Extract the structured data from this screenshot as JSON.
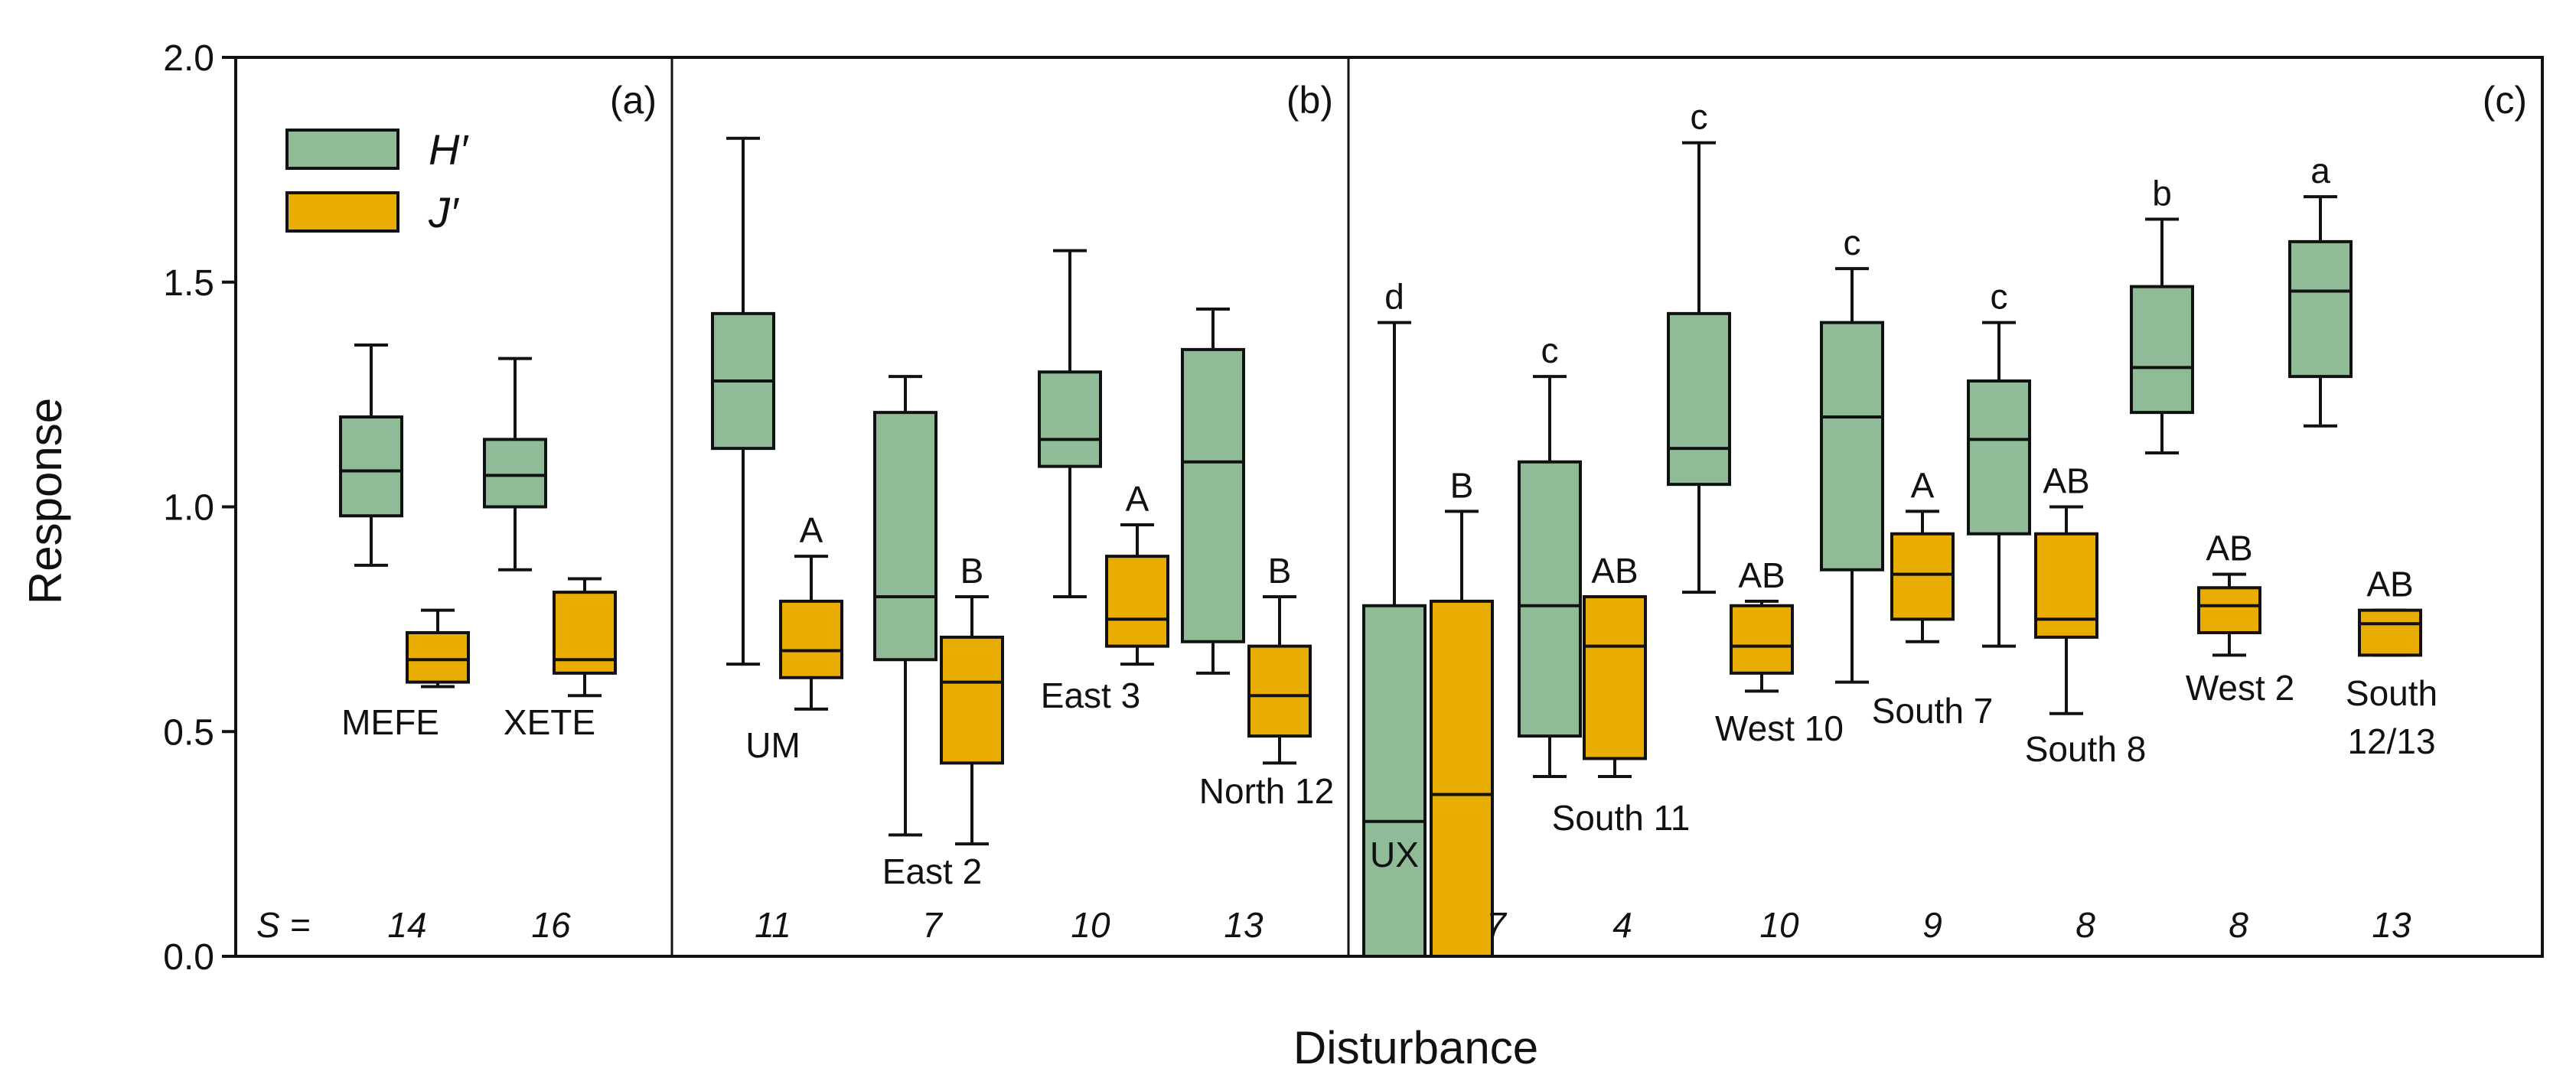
{
  "chart_data": {
    "type": "box",
    "ylabel": "Response",
    "xlabel": "Disturbance",
    "ylim": [
      0,
      2
    ],
    "yticks": [
      "0.0",
      "0.5",
      "1.0",
      "1.5",
      "2.0"
    ],
    "panels": [
      "(a)",
      "(b)",
      "(c)"
    ],
    "s_prefix": "S =",
    "colors": {
      "H": "#8fbc96",
      "J": "#e9ac00",
      "stroke": "#111111"
    },
    "legend": [
      {
        "key": "H",
        "label": "H′",
        "color": "#8fbc96"
      },
      {
        "key": "J",
        "label": "J′",
        "color": "#e9ac00"
      }
    ],
    "groups": [
      {
        "name": "MEFE",
        "panel": "(a)",
        "s": "14",
        "H": {
          "min": 0.87,
          "q1": 0.98,
          "median": 1.08,
          "q3": 1.2,
          "max": 1.36,
          "letter": ""
        },
        "J": {
          "min": 0.6,
          "q1": 0.61,
          "median": 0.66,
          "q3": 0.72,
          "max": 0.77,
          "letter": ""
        }
      },
      {
        "name": "XETE",
        "panel": "(a)",
        "s": "16",
        "H": {
          "min": 0.86,
          "q1": 1.0,
          "median": 1.07,
          "q3": 1.15,
          "max": 1.33,
          "letter": ""
        },
        "J": {
          "min": 0.58,
          "q1": 0.63,
          "median": 0.66,
          "q3": 0.81,
          "max": 0.84,
          "letter": ""
        }
      },
      {
        "name": "UM",
        "panel": "(b)",
        "s": "11",
        "H": {
          "min": 0.65,
          "q1": 1.13,
          "median": 1.28,
          "q3": 1.43,
          "max": 1.82,
          "letter": ""
        },
        "J": {
          "min": 0.55,
          "q1": 0.62,
          "median": 0.68,
          "q3": 0.79,
          "max": 0.89,
          "letter": "A"
        }
      },
      {
        "name": "East 2",
        "panel": "(b)",
        "s": "7",
        "H": {
          "min": 0.27,
          "q1": 0.66,
          "median": 0.8,
          "q3": 1.21,
          "max": 1.29,
          "letter": ""
        },
        "J": {
          "min": 0.25,
          "q1": 0.43,
          "median": 0.61,
          "q3": 0.71,
          "max": 0.8,
          "letter": "B"
        }
      },
      {
        "name": "East 3",
        "panel": "(b)",
        "s": "10",
        "H": {
          "min": 0.8,
          "q1": 1.09,
          "median": 1.15,
          "q3": 1.3,
          "max": 1.57,
          "letter": ""
        },
        "J": {
          "min": 0.65,
          "q1": 0.69,
          "median": 0.75,
          "q3": 0.89,
          "max": 0.96,
          "letter": "A"
        }
      },
      {
        "name": "North 12",
        "panel": "(b)",
        "s": "13",
        "H": {
          "min": 0.63,
          "q1": 0.7,
          "median": 1.1,
          "q3": 1.35,
          "max": 1.44,
          "letter": ""
        },
        "J": {
          "min": 0.43,
          "q1": 0.49,
          "median": 0.58,
          "q3": 0.69,
          "max": 0.8,
          "letter": "B"
        }
      },
      {
        "name": "UX",
        "panel": "(c)",
        "s": "7",
        "H": {
          "min": 0.0,
          "q1": 0.0,
          "median": 0.3,
          "q3": 0.78,
          "max": 1.41,
          "letter": "d"
        },
        "J": {
          "min": 0.0,
          "q1": 0.0,
          "median": 0.36,
          "q3": 0.79,
          "max": 0.99,
          "letter": "B"
        }
      },
      {
        "name": "South 11",
        "panel": "(c)",
        "s": "4",
        "H": {
          "min": 0.4,
          "q1": 0.49,
          "median": 0.78,
          "q3": 1.1,
          "max": 1.29,
          "letter": "c"
        },
        "J": {
          "min": 0.4,
          "q1": 0.44,
          "median": 0.69,
          "q3": 0.8,
          "max": 0.8,
          "letter": "AB"
        }
      },
      {
        "name": "West 10",
        "panel": "(c)",
        "s": "10",
        "H": {
          "min": 0.81,
          "q1": 1.05,
          "median": 1.13,
          "q3": 1.43,
          "max": 1.81,
          "letter": "c"
        },
        "J": {
          "min": 0.59,
          "q1": 0.63,
          "median": 0.69,
          "q3": 0.78,
          "max": 0.79,
          "letter": "AB"
        }
      },
      {
        "name": "South 7",
        "panel": "(c)",
        "s": "9",
        "H": {
          "min": 0.61,
          "q1": 0.86,
          "median": 1.2,
          "q3": 1.41,
          "max": 1.53,
          "letter": "c"
        },
        "J": {
          "min": 0.7,
          "q1": 0.75,
          "median": 0.85,
          "q3": 0.94,
          "max": 0.99,
          "letter": "A"
        }
      },
      {
        "name": "South 8",
        "panel": "(c)",
        "s": "8",
        "H": {
          "min": 0.69,
          "q1": 0.94,
          "median": 1.15,
          "q3": 1.28,
          "max": 1.41,
          "letter": "c"
        },
        "J": {
          "min": 0.54,
          "q1": 0.71,
          "median": 0.75,
          "q3": 0.94,
          "max": 1.0,
          "letter": "AB"
        }
      },
      {
        "name": "West 2",
        "panel": "(c)",
        "s": "8",
        "H": {
          "min": 1.12,
          "q1": 1.21,
          "median": 1.31,
          "q3": 1.49,
          "max": 1.64,
          "letter": "b"
        },
        "J": {
          "min": 0.67,
          "q1": 0.72,
          "median": 0.78,
          "q3": 0.82,
          "max": 0.85,
          "letter": "AB"
        }
      },
      {
        "name": "South 12/13",
        "panel": "(c)",
        "s": "13",
        "H": {
          "min": 1.18,
          "q1": 1.29,
          "median": 1.48,
          "q3": 1.59,
          "max": 1.69,
          "letter": "a"
        },
        "J": {
          "min": 0.67,
          "q1": 0.67,
          "median": 0.74,
          "q3": 0.77,
          "max": 0.77,
          "letter": "AB"
        }
      }
    ]
  }
}
